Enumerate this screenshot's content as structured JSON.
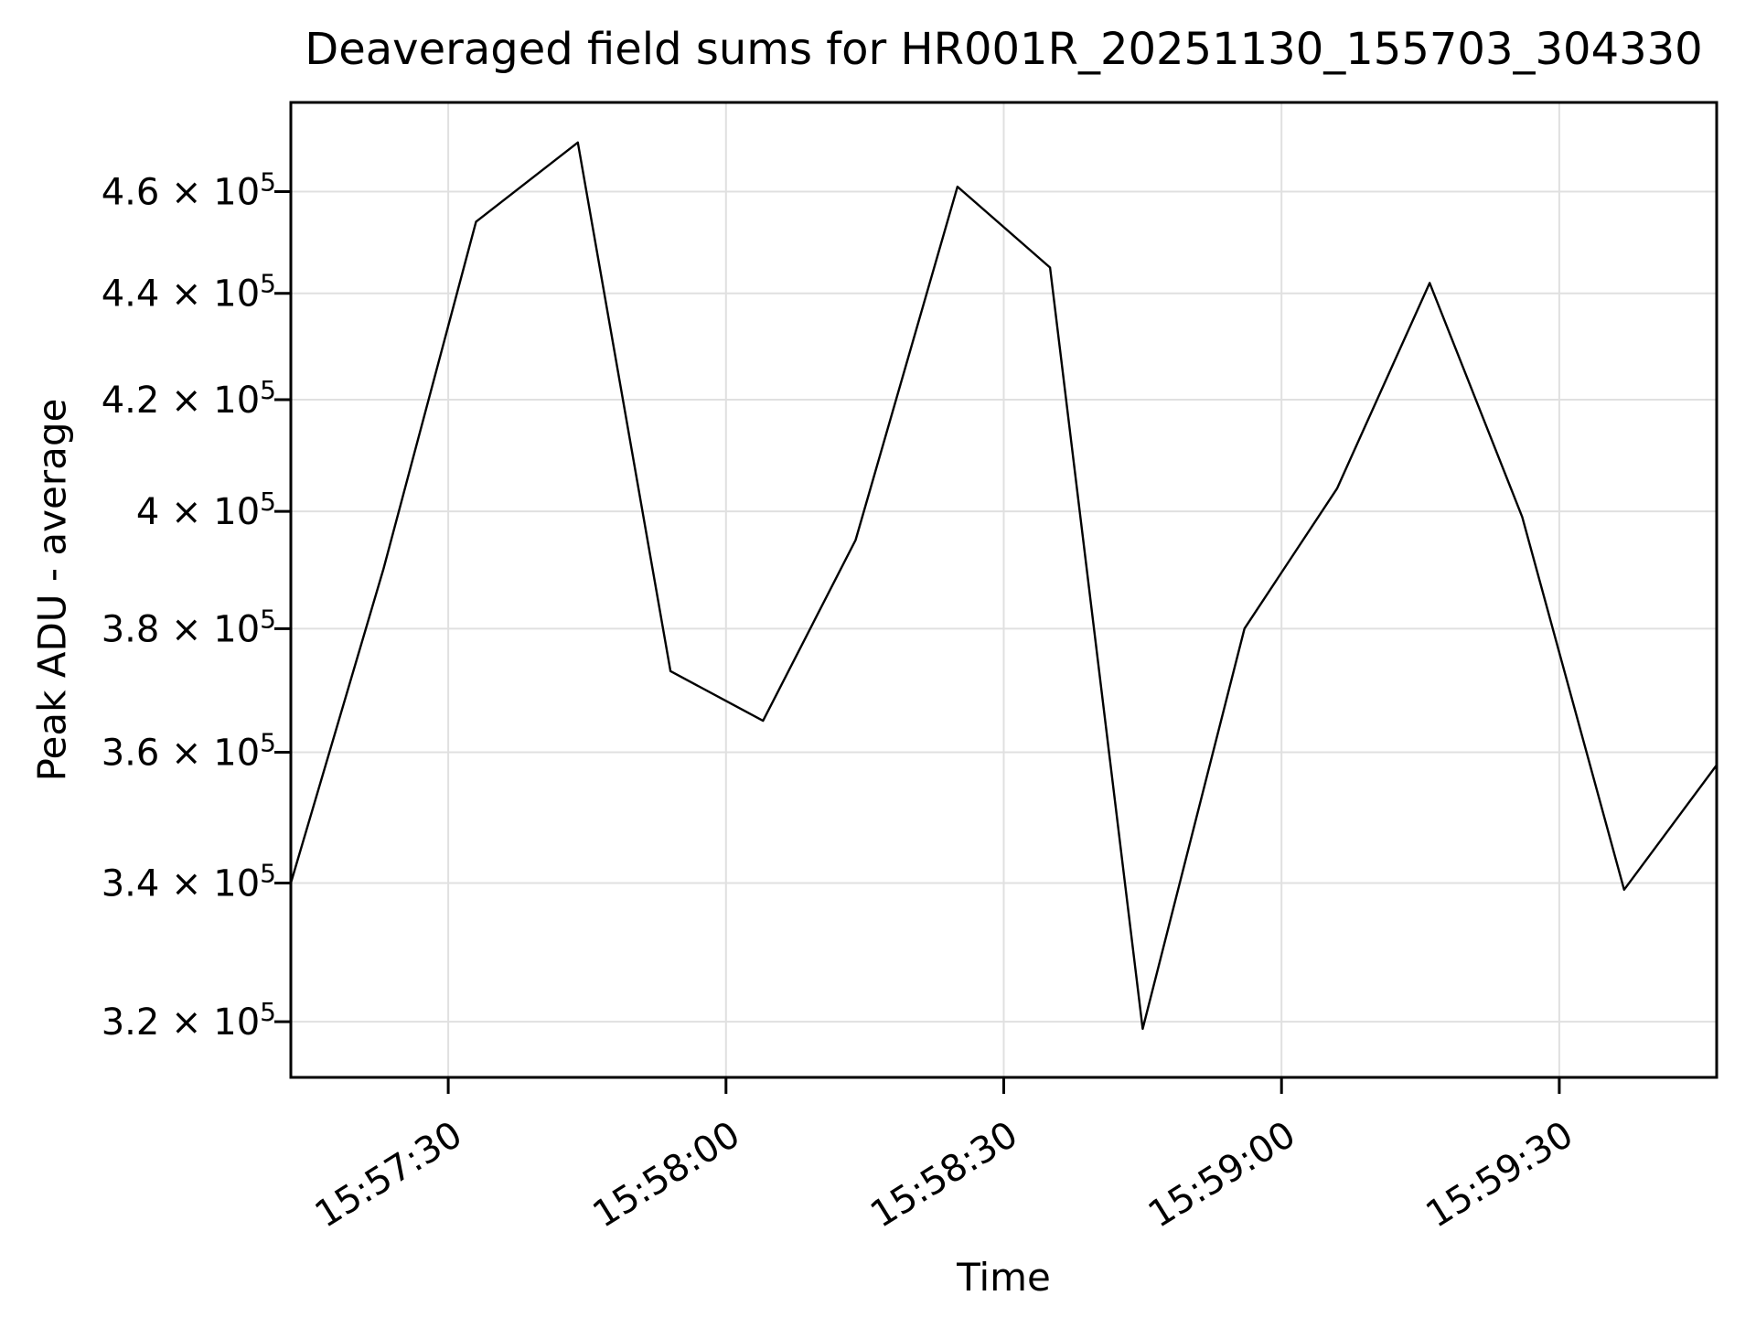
{
  "chart_data": {
    "type": "line",
    "title": "Deaveraged field sums for HR001R_20251130_155703_304330",
    "xlabel": "Time",
    "ylabel": "Peak ADU - average",
    "x_scale": "time",
    "y_scale": "log",
    "grid": true,
    "legend": "none",
    "line_color": "#000000",
    "grid_color": "#e0e0e0",
    "background": "#ffffff",
    "x": [
      "15:57:13",
      "15:57:23",
      "15:57:33",
      "15:57:44",
      "15:57:54",
      "15:58:04",
      "15:58:14",
      "15:58:25",
      "15:58:35",
      "15:58:45",
      "15:58:56",
      "15:59:06",
      "15:59:16",
      "15:59:26",
      "15:59:37",
      "15:59:47"
    ],
    "y": [
      340000,
      390000,
      454000,
      470000,
      373000,
      365000,
      395000,
      461000,
      445000,
      319000,
      380000,
      404000,
      442000,
      399000,
      339000,
      358000
    ],
    "x_ticks": [
      "15:57:30",
      "15:58:00",
      "15:58:30",
      "15:59:00",
      "15:59:30"
    ],
    "y_ticks": [
      {
        "value": 320000,
        "coef": "3.2"
      },
      {
        "value": 340000,
        "coef": "3.4"
      },
      {
        "value": 360000,
        "coef": "3.6"
      },
      {
        "value": 380000,
        "coef": "3.8"
      },
      {
        "value": 400000,
        "coef": "4"
      },
      {
        "value": 420000,
        "coef": "4.2"
      },
      {
        "value": 440000,
        "coef": "4.4"
      },
      {
        "value": 460000,
        "coef": "4.6"
      }
    ],
    "y_tick_suffix": {
      "times": " × ",
      "base": "10",
      "exp": "5"
    },
    "xlim": [
      "15:57:13",
      "15:59:47"
    ],
    "ylim": [
      312300,
      478300
    ]
  }
}
